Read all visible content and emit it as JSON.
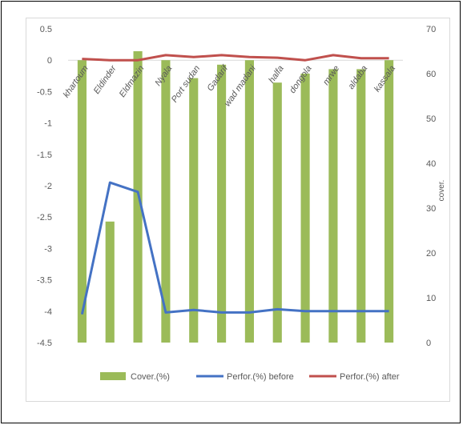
{
  "chart_data": {
    "type": "bar",
    "categories": [
      "khartoum",
      "Eldinder",
      "Eldmazin",
      "Nyala",
      "Port sudan",
      "Gadarif",
      "wad madani",
      "halfa",
      "dongola",
      "mrwe",
      "aldaba",
      "kassala"
    ],
    "series": [
      {
        "name": "Cover.(%)",
        "type": "bar",
        "axis": "right",
        "color": "#9bbb59",
        "values": [
          63,
          27,
          65,
          63,
          59,
          62,
          63,
          58,
          60,
          61,
          61,
          63
        ]
      },
      {
        "name": "Perfor.(%) before",
        "type": "line",
        "axis": "left",
        "color": "#4472c4",
        "values": [
          -4.05,
          -1.95,
          -2.1,
          -4.02,
          -3.98,
          -4.02,
          -4.02,
          -3.97,
          -4.0,
          -4.0,
          -4.0,
          -4.0
        ]
      },
      {
        "name": "Perfor.(%) after",
        "type": "line",
        "axis": "left",
        "color": "#c0504d",
        "values": [
          0.02,
          0.0,
          0.0,
          0.08,
          0.05,
          0.08,
          0.05,
          0.04,
          0.0,
          0.08,
          0.03,
          0.03
        ]
      }
    ],
    "left_axis": {
      "min": -4.5,
      "max": 0.5,
      "ticks": [
        "0.5",
        "0",
        "-0.5",
        "-1",
        "-1.5",
        "-2",
        "-2.5",
        "-3",
        "-3.5",
        "-4",
        "-4.5"
      ]
    },
    "right_axis": {
      "min": 0,
      "max": 70,
      "label": "cover.",
      "ticks": [
        "70",
        "60",
        "50",
        "40",
        "30",
        "20",
        "10",
        "0"
      ]
    },
    "grid": false,
    "legend_position": "bottom"
  }
}
